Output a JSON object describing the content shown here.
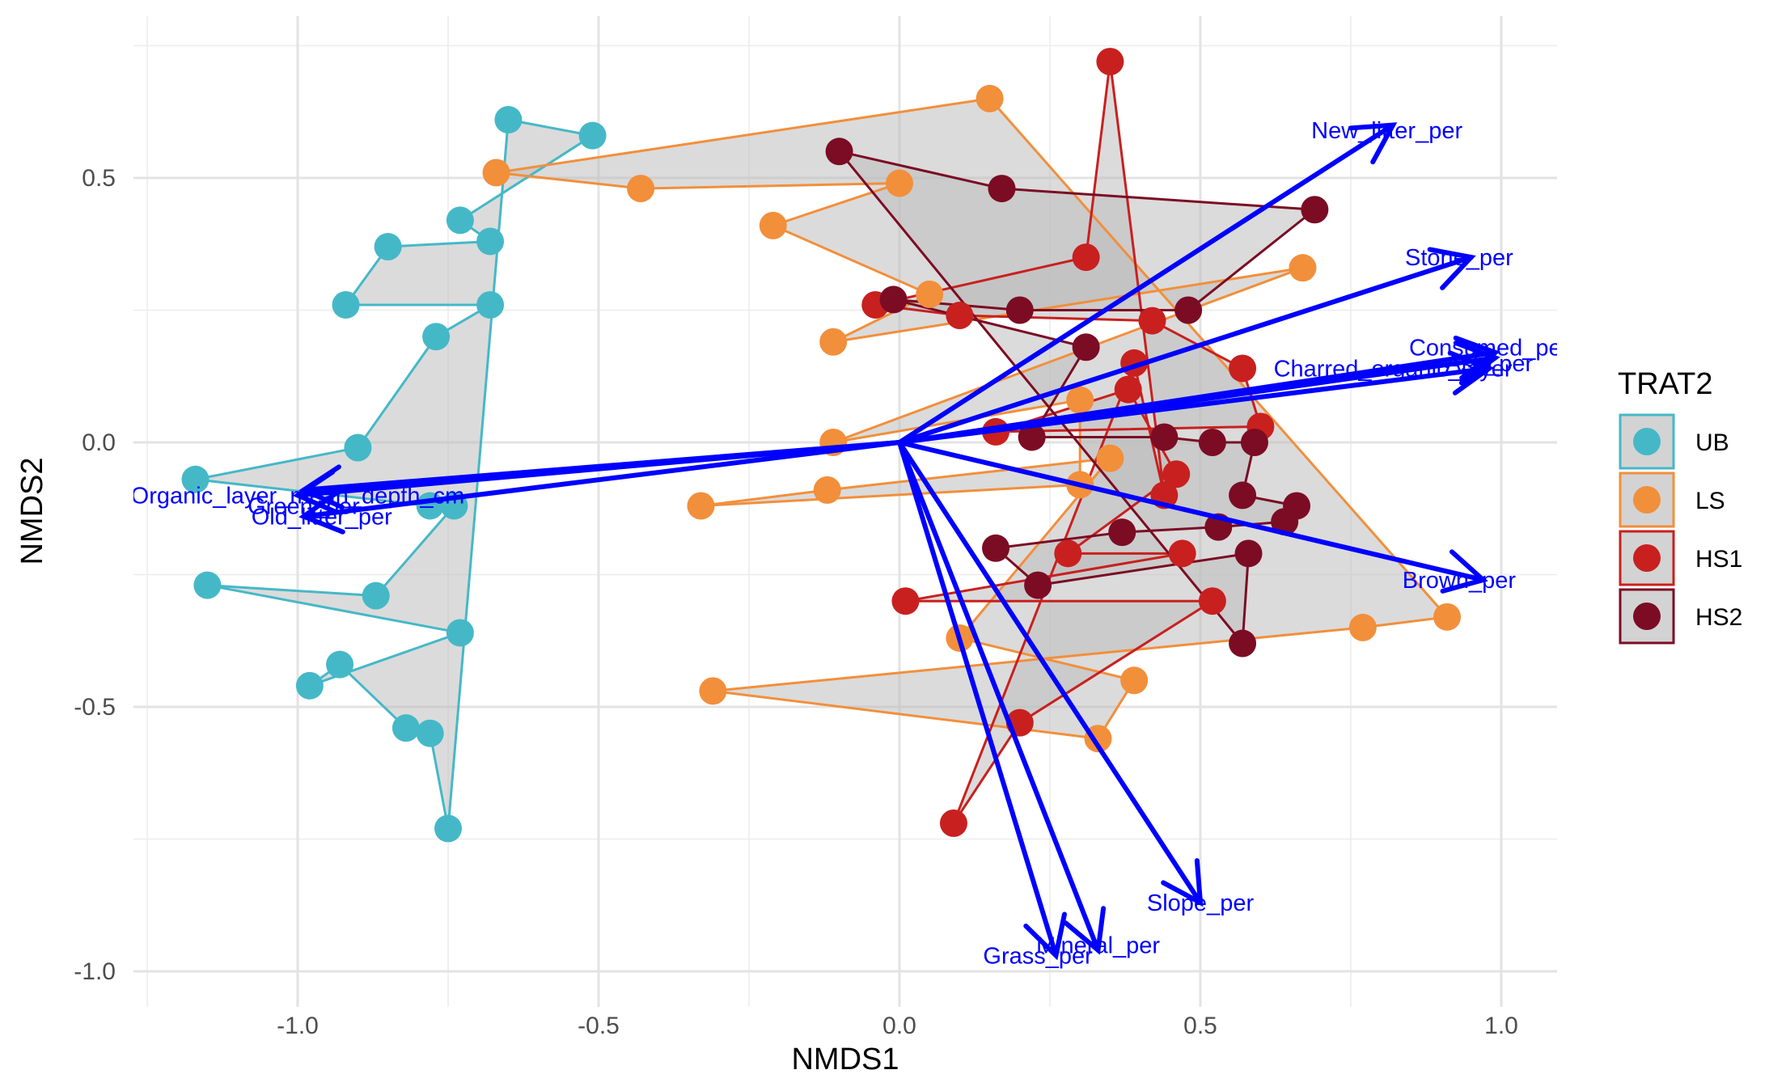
{
  "chart_data": {
    "type": "scatter",
    "title": "",
    "xlabel": "NMDS1",
    "ylabel": "NMDS2",
    "xlim": [
      -1.25,
      1.1
    ],
    "ylim": [
      -1.04,
      0.76
    ],
    "x_ticks": [
      -1.0,
      -0.5,
      0.0,
      0.5,
      1.0
    ],
    "x_tick_labels": [
      "-1.0",
      "-0.5",
      "0.0",
      "0.5",
      "1.0"
    ],
    "y_ticks": [
      -1.0,
      -0.5,
      0.0,
      0.5
    ],
    "y_tick_labels": [
      "-1.0",
      "-0.5",
      "0.0",
      "0.5"
    ],
    "grid": true,
    "legend": {
      "title": "TRAT2",
      "placement": "right"
    },
    "hull_fill": "#bebebe",
    "series": [
      {
        "name": "UB",
        "color": "#45b8c7",
        "points": [
          [
            -0.65,
            0.61
          ],
          [
            -0.51,
            0.58
          ],
          [
            -0.73,
            0.42
          ],
          [
            -0.68,
            0.38
          ],
          [
            -0.85,
            0.37
          ],
          [
            -0.92,
            0.26
          ],
          [
            -0.68,
            0.26
          ],
          [
            -0.77,
            0.2
          ],
          [
            -0.9,
            -0.01
          ],
          [
            -1.17,
            -0.07
          ],
          [
            -0.78,
            -0.12
          ],
          [
            -0.74,
            -0.12
          ],
          [
            -0.87,
            -0.29
          ],
          [
            -1.15,
            -0.27
          ],
          [
            -0.73,
            -0.36
          ],
          [
            -0.98,
            -0.46
          ],
          [
            -0.93,
            -0.42
          ],
          [
            -0.82,
            -0.54
          ],
          [
            -0.78,
            -0.55
          ],
          [
            -0.75,
            -0.73
          ]
        ],
        "path_order": [
          0,
          1,
          2,
          3,
          4,
          5,
          6,
          7,
          8,
          9,
          10,
          11,
          12,
          13,
          14,
          15,
          16,
          17,
          18,
          19
        ]
      },
      {
        "name": "LS",
        "color": "#f28f3b",
        "points": [
          [
            0.15,
            0.65
          ],
          [
            -0.67,
            0.51
          ],
          [
            -0.43,
            0.48
          ],
          [
            0.0,
            0.49
          ],
          [
            -0.21,
            0.41
          ],
          [
            0.05,
            0.28
          ],
          [
            -0.11,
            0.19
          ],
          [
            0.67,
            0.33
          ],
          [
            -0.11,
            0.0
          ],
          [
            0.3,
            0.08
          ],
          [
            0.3,
            -0.08
          ],
          [
            -0.33,
            -0.12
          ],
          [
            -0.12,
            -0.09
          ],
          [
            0.35,
            -0.03
          ],
          [
            0.1,
            -0.37
          ],
          [
            0.39,
            -0.45
          ],
          [
            0.33,
            -0.56
          ],
          [
            -0.31,
            -0.47
          ],
          [
            0.77,
            -0.35
          ],
          [
            0.91,
            -0.33
          ]
        ],
        "path_order": [
          0,
          1,
          2,
          3,
          4,
          5,
          6,
          7,
          8,
          9,
          10,
          11,
          12,
          13,
          14,
          15,
          16,
          17,
          18,
          19
        ]
      },
      {
        "name": "HS1",
        "color": "#c8201f",
        "points": [
          [
            0.35,
            0.72
          ],
          [
            0.31,
            0.35
          ],
          [
            -0.04,
            0.26
          ],
          [
            0.1,
            0.24
          ],
          [
            0.42,
            0.23
          ],
          [
            0.57,
            0.14
          ],
          [
            0.6,
            0.03
          ],
          [
            0.16,
            0.02
          ],
          [
            0.38,
            0.1
          ],
          [
            0.46,
            -0.06
          ],
          [
            0.28,
            -0.21
          ],
          [
            0.47,
            -0.21
          ],
          [
            0.01,
            -0.3
          ],
          [
            0.52,
            -0.3
          ],
          [
            0.2,
            -0.53
          ],
          [
            0.09,
            -0.72
          ],
          [
            0.39,
            0.15
          ],
          [
            0.44,
            -0.1
          ]
        ],
        "path_order": [
          0,
          1,
          2,
          3,
          4,
          5,
          6,
          7,
          8,
          9,
          10,
          11,
          12,
          13,
          14,
          15,
          16,
          17
        ]
      },
      {
        "name": "HS2",
        "color": "#7b0c24",
        "points": [
          [
            -0.1,
            0.55
          ],
          [
            0.17,
            0.48
          ],
          [
            0.69,
            0.44
          ],
          [
            0.48,
            0.25
          ],
          [
            0.2,
            0.25
          ],
          [
            -0.01,
            0.27
          ],
          [
            0.31,
            0.18
          ],
          [
            0.22,
            0.01
          ],
          [
            0.44,
            0.01
          ],
          [
            0.52,
            0.0
          ],
          [
            0.59,
            0.0
          ],
          [
            0.57,
            -0.1
          ],
          [
            0.66,
            -0.12
          ],
          [
            0.64,
            -0.15
          ],
          [
            0.53,
            -0.16
          ],
          [
            0.37,
            -0.17
          ],
          [
            0.16,
            -0.2
          ],
          [
            0.23,
            -0.27
          ],
          [
            0.58,
            -0.21
          ],
          [
            0.57,
            -0.38
          ]
        ],
        "path_order": [
          0,
          1,
          2,
          3,
          4,
          5,
          6,
          7,
          8,
          9,
          10,
          11,
          12,
          13,
          14,
          15,
          16,
          17,
          18,
          19
        ]
      }
    ],
    "vectors": {
      "color": "#0000ff",
      "items": [
        {
          "label": "New_litter_per",
          "x": 0.82,
          "y": 0.6,
          "label_x": 0.81,
          "label_y": 0.59
        },
        {
          "label": "Stone_per",
          "x": 0.95,
          "y": 0.35,
          "label_x": 0.93,
          "label_y": 0.35
        },
        {
          "label": "Consumed_per",
          "x": 0.99,
          "y": 0.17,
          "label_x": 0.98,
          "label_y": 0.18
        },
        {
          "label": "Ash_per",
          "x": 0.99,
          "y": 0.16,
          "label_x": 0.98,
          "label_y": 0.15
        },
        {
          "label": "Charred_organic_layer",
          "x": 0.98,
          "y": 0.14,
          "label_x": 0.82,
          "label_y": 0.14
        },
        {
          "label": "Brown_per",
          "x": 0.97,
          "y": -0.26,
          "label_x": 0.93,
          "label_y": -0.26
        },
        {
          "label": "Slope_per",
          "x": 0.5,
          "y": -0.87,
          "label_x": 0.5,
          "label_y": -0.87
        },
        {
          "label": "Mineral_per",
          "x": 0.33,
          "y": -0.96,
          "label_x": 0.33,
          "label_y": -0.95
        },
        {
          "label": "Grass_per",
          "x": 0.26,
          "y": -0.97,
          "label_x": 0.23,
          "label_y": -0.97
        },
        {
          "label": "Green_per",
          "x": -0.99,
          "y": -0.09,
          "label_x": -0.99,
          "label_y": -0.12
        },
        {
          "label": "Organic_layer_mean_depth_cm",
          "x": -1.0,
          "y": -0.1,
          "label_x": -1.0,
          "label_y": -0.1
        },
        {
          "label": "Old_litter_per",
          "x": -0.99,
          "y": -0.14,
          "label_x": -0.96,
          "label_y": -0.14
        }
      ]
    }
  }
}
